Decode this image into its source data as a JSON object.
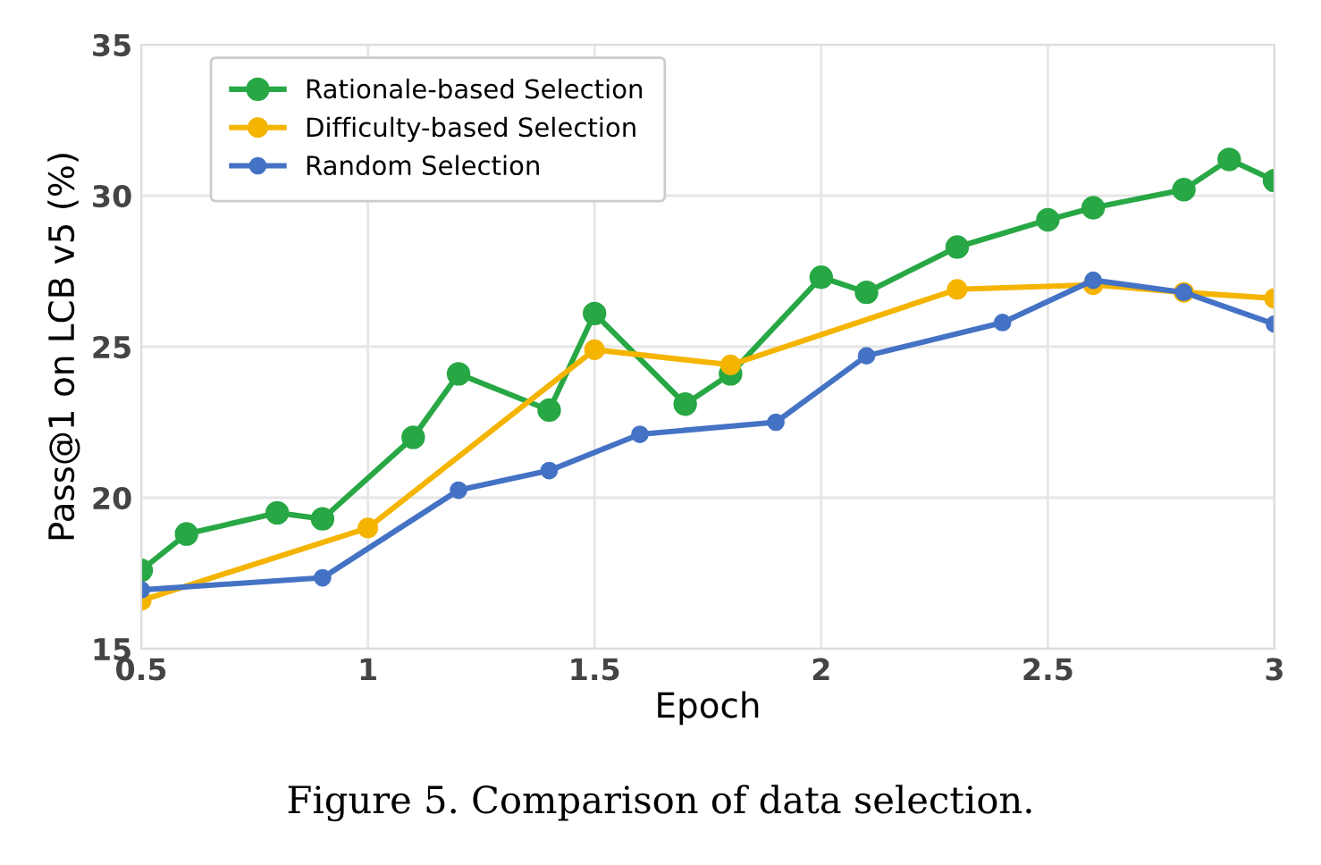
{
  "chart_data": {
    "type": "line",
    "xlabel": "Epoch",
    "ylabel": "Pass@1 on LCB v5 (%)",
    "xlim": [
      0.5,
      3
    ],
    "ylim": [
      15,
      35
    ],
    "xticks": [
      0.5,
      1,
      1.5,
      2,
      2.5,
      3
    ],
    "yticks": [
      15,
      20,
      25,
      30,
      35
    ],
    "grid": true,
    "legend": "top left",
    "marker": "circle",
    "line_style": "solid",
    "annotations": [
      "Figure 5. Comparison of data selection."
    ],
    "series": [
      {
        "name": "Rationale-based Selection",
        "color": "#28a745",
        "x": [
          0.5,
          0.6,
          0.8,
          0.9,
          1.1,
          1.2,
          1.4,
          1.5,
          1.7,
          1.8,
          2.0,
          2.1,
          2.3,
          2.5,
          2.6,
          2.8,
          2.9,
          3.0
        ],
        "values": [
          17.6,
          18.8,
          19.5,
          19.3,
          22.0,
          24.1,
          22.9,
          26.1,
          23.1,
          24.1,
          27.3,
          26.8,
          28.3,
          29.2,
          29.6,
          30.2,
          31.2,
          30.5
        ]
      },
      {
        "name": "Difficulty-based Selection",
        "color": "#f4b400",
        "x": [
          0.5,
          1.0,
          1.5,
          1.8,
          2.3,
          2.6,
          2.8,
          3.0
        ],
        "values": [
          16.6,
          19.0,
          24.9,
          24.4,
          26.9,
          27.05,
          26.8,
          26.6
        ]
      },
      {
        "name": "Random Selection",
        "color": "#4472c4",
        "x": [
          0.5,
          0.9,
          1.2,
          1.4,
          1.6,
          1.9,
          2.1,
          2.4,
          2.6,
          2.8,
          3.0
        ],
        "values": [
          16.95,
          17.35,
          20.25,
          20.9,
          22.1,
          22.5,
          24.7,
          25.8,
          27.2,
          26.8,
          25.75
        ]
      }
    ]
  }
}
